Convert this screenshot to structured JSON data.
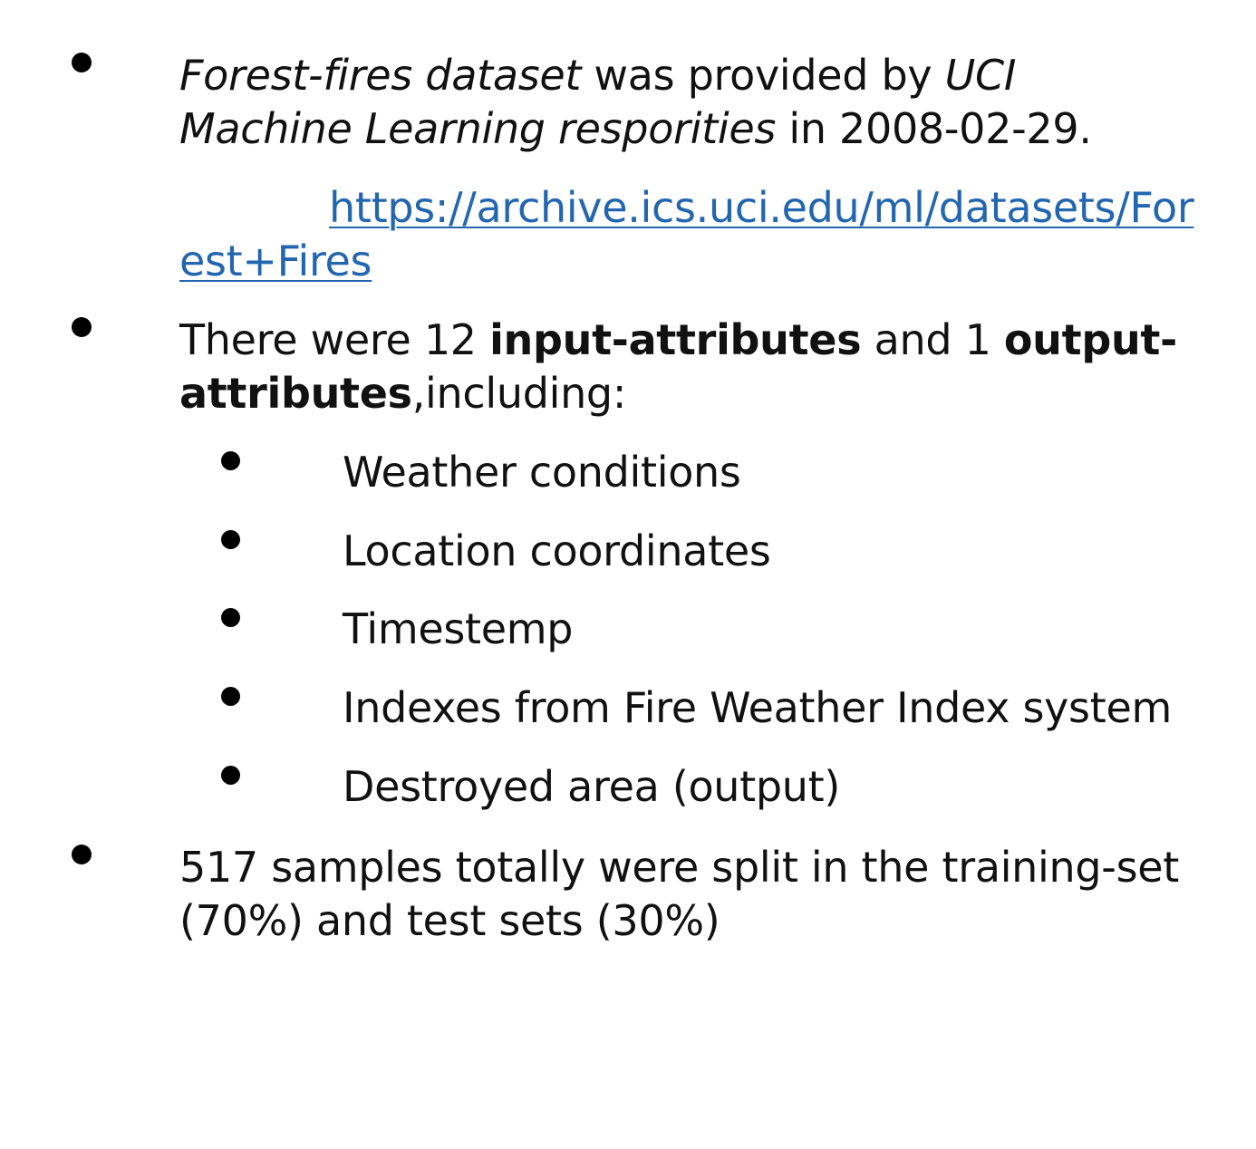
{
  "bullets": {
    "item1": {
      "part1": "Forest-fires dataset",
      "part2": " was provided by ",
      "part3": "UCI",
      "part4": "Machine Learning resporities",
      "part5": " in 2008-02-29.",
      "link_line1": "https://archive.ics.uci.edu/ml/datasets/For",
      "link_line2": "est+Fires"
    },
    "item2": {
      "part1": "There were 12 ",
      "part2": "input-attributes",
      "part3": " and 1 ",
      "part4": "output-",
      "part5": "attributes",
      "part6": ",including:"
    },
    "sub_items": [
      "Weather conditions",
      "Location coordinates",
      "Timestemp",
      "Indexes from Fire Weather Index system",
      "Destroyed area (output)"
    ],
    "item3": {
      "line1": "517 samples totally were split in the training-set",
      "line2": "(70%) and test sets (30%)"
    }
  }
}
